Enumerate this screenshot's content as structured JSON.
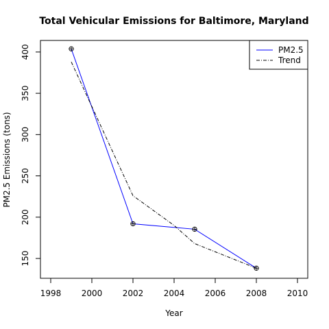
{
  "chart_data": {
    "type": "line",
    "title": "Total Vehicular Emissions for Baltimore, Maryland",
    "xlabel": "Year",
    "ylabel": "PM2.5 Emissions (tons)",
    "xlim": [
      1997.5,
      2010.5
    ],
    "ylim": [
      126,
      414
    ],
    "x_ticks": [
      1998,
      2000,
      2002,
      2004,
      2006,
      2008,
      2010
    ],
    "y_ticks": [
      150,
      200,
      250,
      300,
      350,
      400
    ],
    "grid": false,
    "legend_position": "top-right",
    "series": [
      {
        "name": "PM2.5",
        "style": "solid",
        "color": "#0000ff",
        "markers": true,
        "x": [
          1999,
          2002,
          2005,
          2008
        ],
        "y": [
          403.8,
          192.0,
          185.4,
          138.2
        ]
      },
      {
        "name": "Trend",
        "style": "dashed",
        "color": "#000000",
        "markers": false,
        "x": [
          1999,
          2002,
          2004,
          2005,
          2008
        ],
        "y": [
          388,
          226,
          190,
          168,
          138.2
        ]
      }
    ]
  }
}
